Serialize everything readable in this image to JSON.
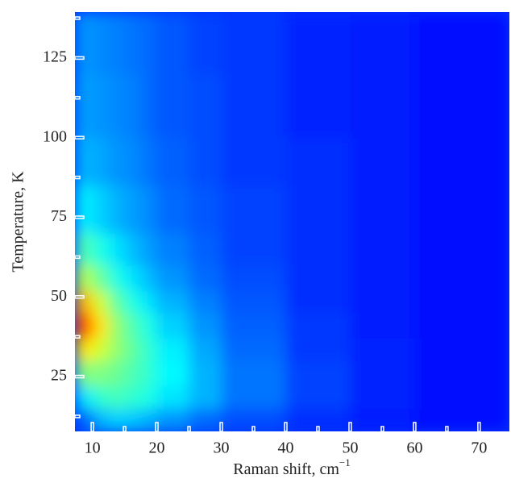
{
  "chart_data": {
    "type": "heatmap",
    "x_label": "Raman shift, cm",
    "x_label_sup": "−1",
    "y_label": "Temperature, K",
    "xlim": [
      7.3,
      74.7
    ],
    "ylim": [
      7.8,
      139.4
    ],
    "xticks": [
      10,
      20,
      30,
      40,
      50,
      60,
      70
    ],
    "xminor_ticks": [
      15,
      25,
      35,
      45,
      55,
      65
    ],
    "yticks": [
      25,
      50,
      75,
      100,
      125
    ],
    "yminor_ticks": [
      12.5,
      37.5,
      62.5,
      87.5,
      112.5,
      137.5
    ],
    "colormap": "jet",
    "x_bins": [
      7.3,
      10,
      12.5,
      15,
      17.5,
      20,
      25,
      30,
      40,
      50,
      60,
      74.7
    ],
    "y_bins": [
      7.8,
      15,
      22,
      30,
      37,
      45,
      52,
      60,
      70,
      85,
      100,
      120,
      139.4
    ],
    "z": [
      [
        0.22,
        0.3,
        0.33,
        0.32,
        0.3,
        0.27,
        0.23,
        0.2,
        0.17,
        0.15,
        0.14
      ],
      [
        0.35,
        0.42,
        0.44,
        0.42,
        0.4,
        0.35,
        0.3,
        0.24,
        0.19,
        0.16,
        0.14
      ],
      [
        0.5,
        0.5,
        0.48,
        0.45,
        0.42,
        0.37,
        0.3,
        0.24,
        0.19,
        0.16,
        0.14
      ],
      [
        0.65,
        0.58,
        0.52,
        0.47,
        0.42,
        0.36,
        0.29,
        0.23,
        0.18,
        0.16,
        0.14
      ],
      [
        0.8,
        0.65,
        0.52,
        0.45,
        0.4,
        0.33,
        0.27,
        0.22,
        0.18,
        0.15,
        0.14
      ],
      [
        0.7,
        0.58,
        0.47,
        0.4,
        0.35,
        0.3,
        0.25,
        0.21,
        0.17,
        0.15,
        0.14
      ],
      [
        0.55,
        0.48,
        0.4,
        0.35,
        0.31,
        0.27,
        0.23,
        0.2,
        0.17,
        0.15,
        0.14
      ],
      [
        0.45,
        0.4,
        0.35,
        0.31,
        0.28,
        0.25,
        0.22,
        0.19,
        0.17,
        0.15,
        0.14
      ],
      [
        0.36,
        0.33,
        0.3,
        0.28,
        0.26,
        0.23,
        0.21,
        0.19,
        0.17,
        0.15,
        0.14
      ],
      [
        0.3,
        0.29,
        0.27,
        0.26,
        0.24,
        0.22,
        0.2,
        0.18,
        0.17,
        0.15,
        0.14
      ],
      [
        0.28,
        0.27,
        0.26,
        0.25,
        0.23,
        0.21,
        0.2,
        0.18,
        0.16,
        0.15,
        0.14
      ],
      [
        0.27,
        0.26,
        0.25,
        0.24,
        0.23,
        0.21,
        0.19,
        0.18,
        0.16,
        0.15,
        0.14
      ]
    ]
  }
}
